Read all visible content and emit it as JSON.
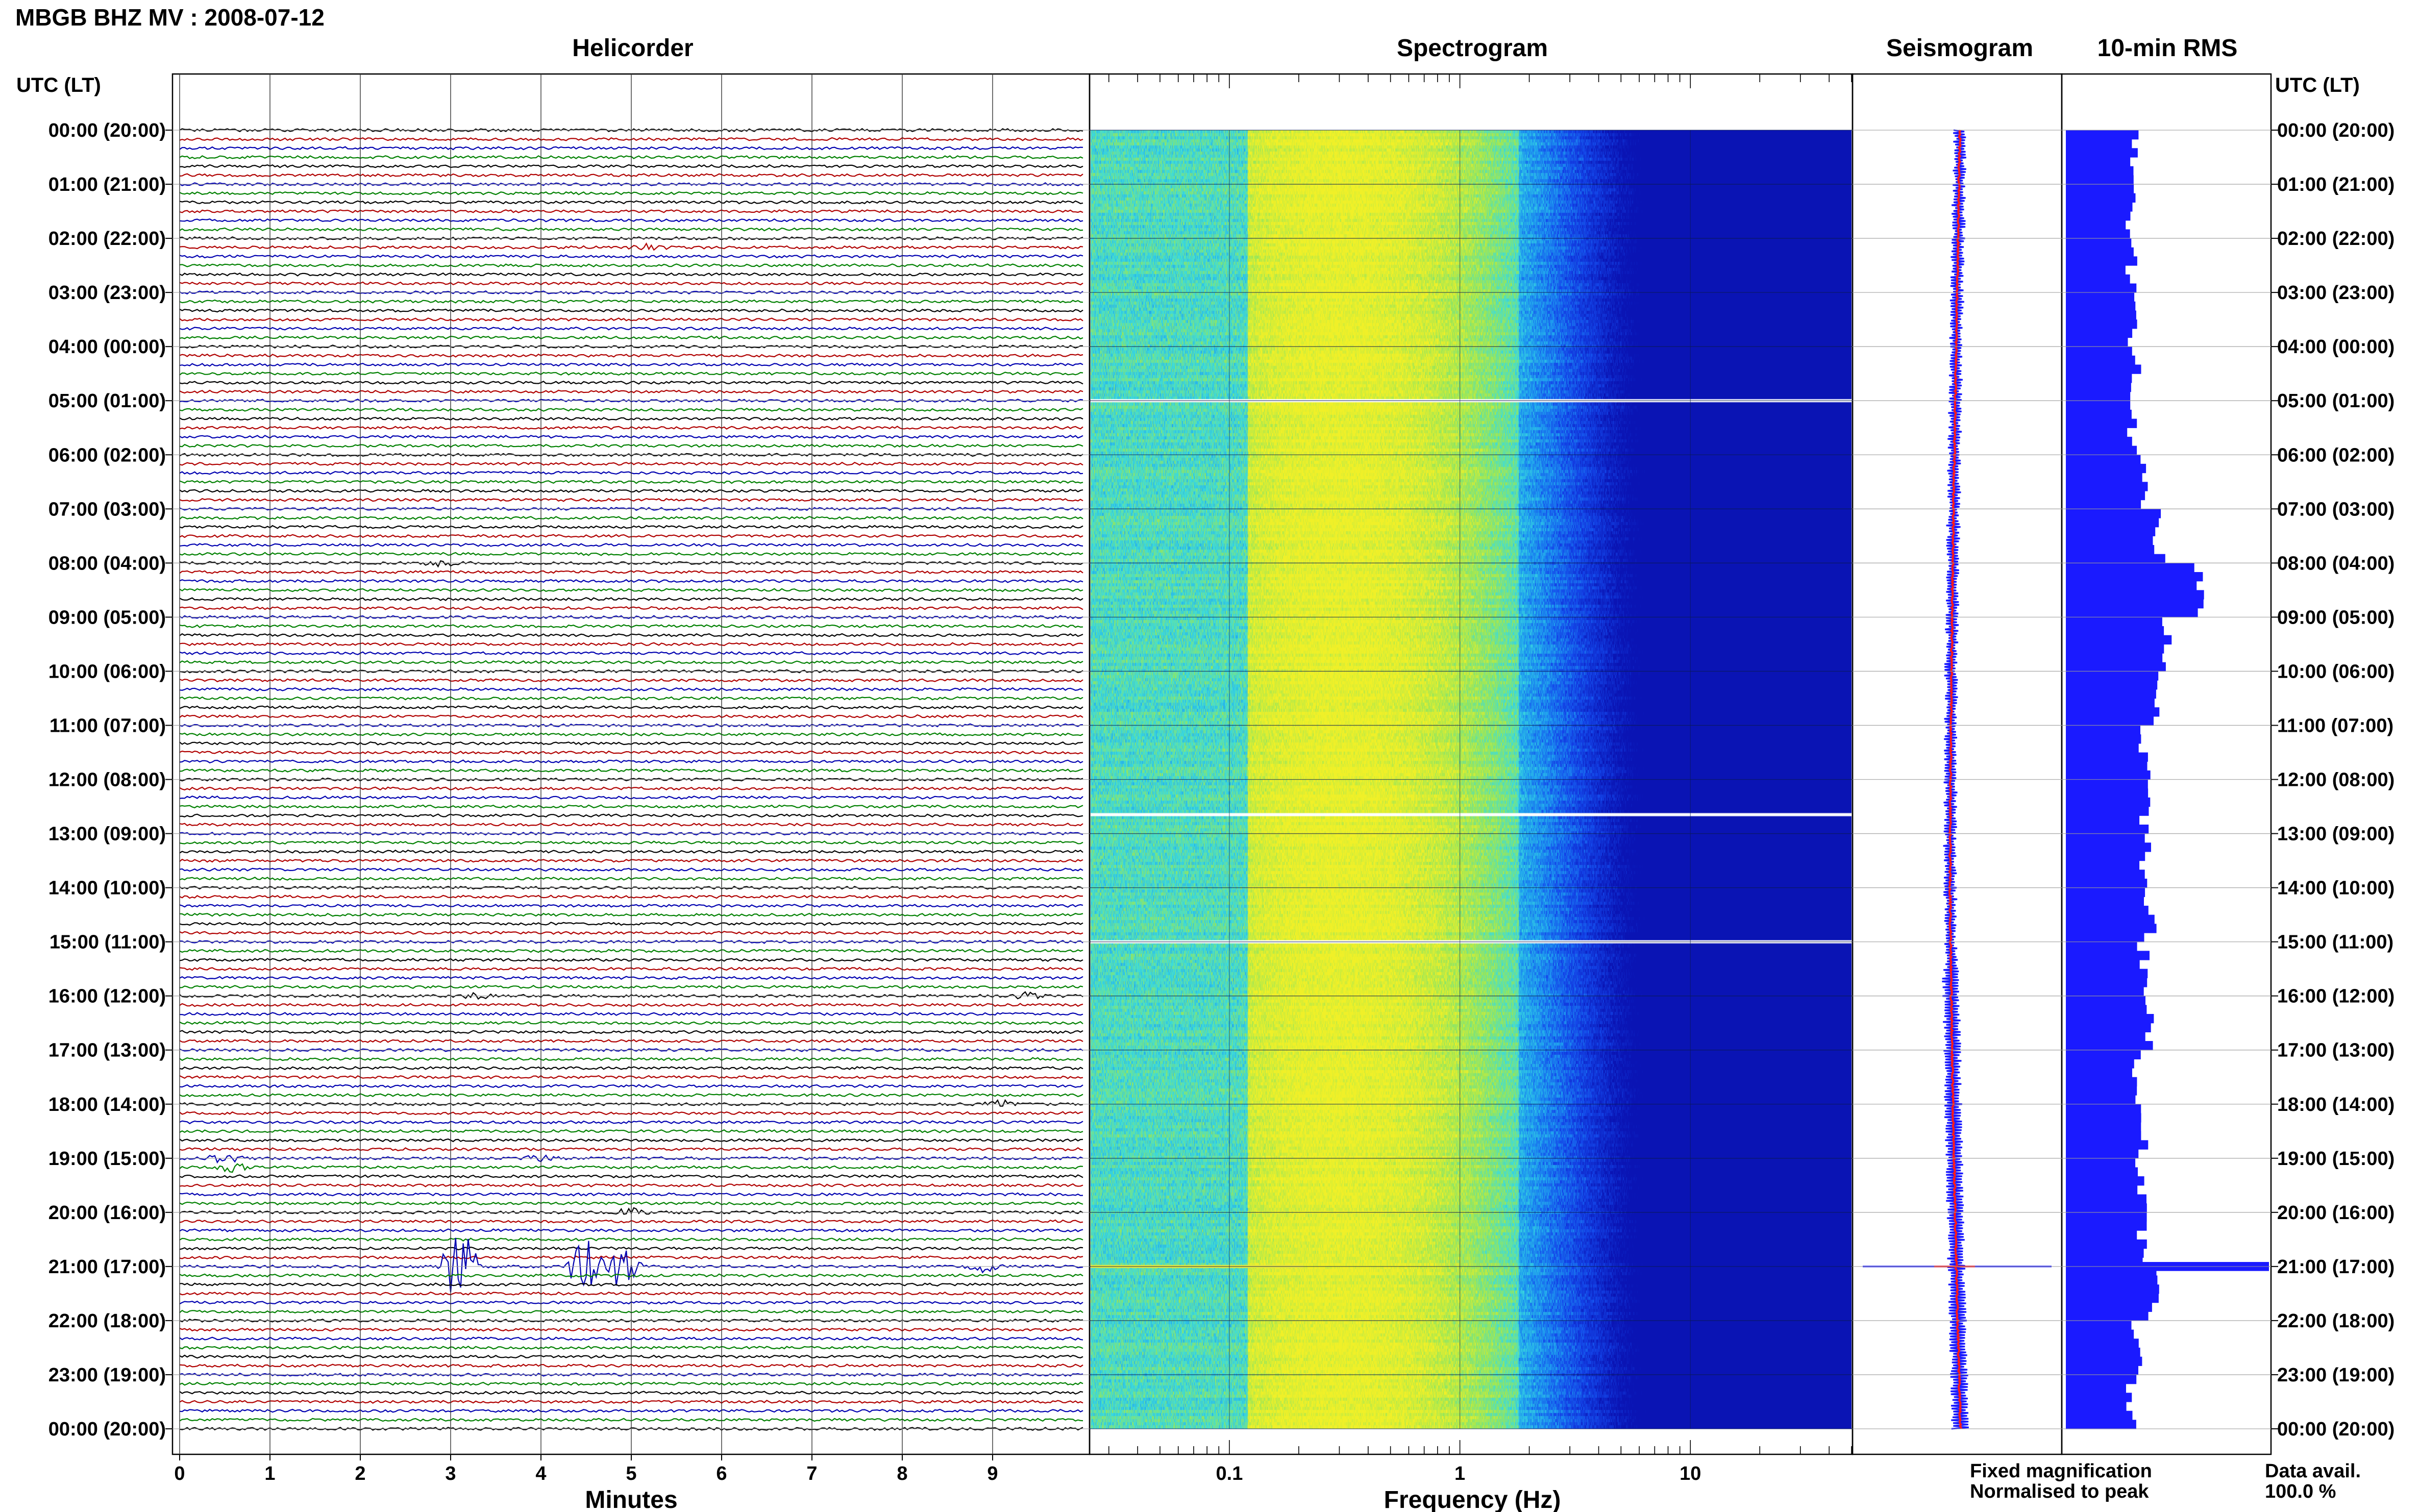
{
  "page": {
    "title": "MBGB BHZ MV : 2008-07-12",
    "time_axis_title_left": "UTC (LT)",
    "time_axis_title_right": "UTC (LT)"
  },
  "panels": {
    "helicorder": "Helicorder",
    "spectrogram": "Spectrogram",
    "seismogram": "Seismogram",
    "rms": "10-min RMS"
  },
  "legend": {
    "fixed": "Fixed magnification",
    "normalised": "Normalised to peak",
    "fixed_color": "#1a1aff",
    "normalised_color": "#ff1a1a"
  },
  "data_avail": {
    "label": "Data avail.",
    "value": "100.0 %"
  },
  "time_labels": [
    "00:00 (20:00)",
    "01:00 (21:00)",
    "02:00 (22:00)",
    "03:00 (23:00)",
    "04:00 (00:00)",
    "05:00 (01:00)",
    "06:00 (02:00)",
    "07:00 (03:00)",
    "08:00 (04:00)",
    "09:00 (05:00)",
    "10:00 (06:00)",
    "11:00 (07:00)",
    "12:00 (08:00)",
    "13:00 (09:00)",
    "14:00 (10:00)",
    "15:00 (11:00)",
    "16:00 (12:00)",
    "17:00 (13:00)",
    "18:00 (14:00)",
    "19:00 (15:00)",
    "20:00 (16:00)",
    "21:00 (17:00)",
    "22:00 (18:00)",
    "23:00 (19:00)",
    "00:00 (20:00)"
  ],
  "chart_data": [
    {
      "type": "line",
      "panel": "Helicorder",
      "xlabel": "Minutes",
      "xticks": [
        "0",
        "1",
        "2",
        "3",
        "4",
        "5",
        "6",
        "7",
        "8",
        "9"
      ],
      "xlim": [
        0,
        10
      ],
      "trace_colors": [
        "#000000",
        "#b00000",
        "#0000b0",
        "#008000"
      ],
      "trace_count": 144,
      "events": [
        {
          "hour": 2.2,
          "minute": 5.2,
          "amp": 6,
          "color_index": 2
        },
        {
          "hour": 7.95,
          "minute": 2.9,
          "amp": 5,
          "color_index": 0
        },
        {
          "hour": 16.0,
          "minute": 3.3,
          "amp": 5,
          "color_index": 0
        },
        {
          "hour": 16.0,
          "minute": 9.4,
          "amp": 6,
          "color_index": 3
        },
        {
          "hour": 18.0,
          "minute": 9.1,
          "amp": 6,
          "color_index": 0
        },
        {
          "hour": 19.0,
          "minute": 0.5,
          "amp": 8,
          "color_index": 2
        },
        {
          "hour": 19.17,
          "minute": 0.6,
          "amp": 8,
          "color_index": 1
        },
        {
          "hour": 19.0,
          "minute": 4.0,
          "amp": 6,
          "color_index": 3
        },
        {
          "hour": 20.0,
          "minute": 5.0,
          "amp": 7,
          "color_index": 1
        },
        {
          "hour": 21.0,
          "minute": 3.1,
          "amp": 70,
          "color_index": 2
        },
        {
          "hour": 21.0,
          "minute": 4.5,
          "amp": 55,
          "color_index": 2
        },
        {
          "hour": 21.0,
          "minute": 4.9,
          "amp": 45,
          "color_index": 2
        },
        {
          "hour": 21.0,
          "minute": 8.9,
          "amp": 8,
          "color_index": 2
        }
      ]
    },
    {
      "type": "heatmap",
      "panel": "Spectrogram",
      "xlabel": "Frequency (Hz)",
      "xscale": "log",
      "xlim": [
        0.025,
        50
      ],
      "xticks": [
        "0.1",
        "1",
        "10"
      ],
      "peak_frequency_hz": 0.3,
      "gaps_utc_hours": [
        5.0,
        12.65,
        15.0
      ],
      "event_utc_hours": [
        21.0
      ]
    },
    {
      "type": "line",
      "panel": "Seismogram",
      "series": [
        {
          "name": "Fixed magnification",
          "color": "#1a1aff"
        },
        {
          "name": "Normalised to peak",
          "color": "#ff1a1a"
        }
      ],
      "spike_utc_hour": 21.0
    },
    {
      "type": "bar",
      "panel": "10-min RMS",
      "orientation": "horizontal",
      "unit": "relative",
      "bin_minutes": 10,
      "hourly_rms": [
        1.0,
        1.0,
        1.0,
        1.0,
        1.02,
        1.0,
        1.05,
        1.12,
        1.3,
        1.15,
        1.1,
        1.05,
        1.05,
        1.06,
        1.08,
        1.05,
        1.08,
        1.02,
        1.04,
        1.04,
        1.05,
        1.1,
        1.02,
        1.0
      ],
      "peak": {
        "utc_hour": 21.0,
        "value": 3.0
      },
      "bar_color": "#1a1aff"
    }
  ]
}
